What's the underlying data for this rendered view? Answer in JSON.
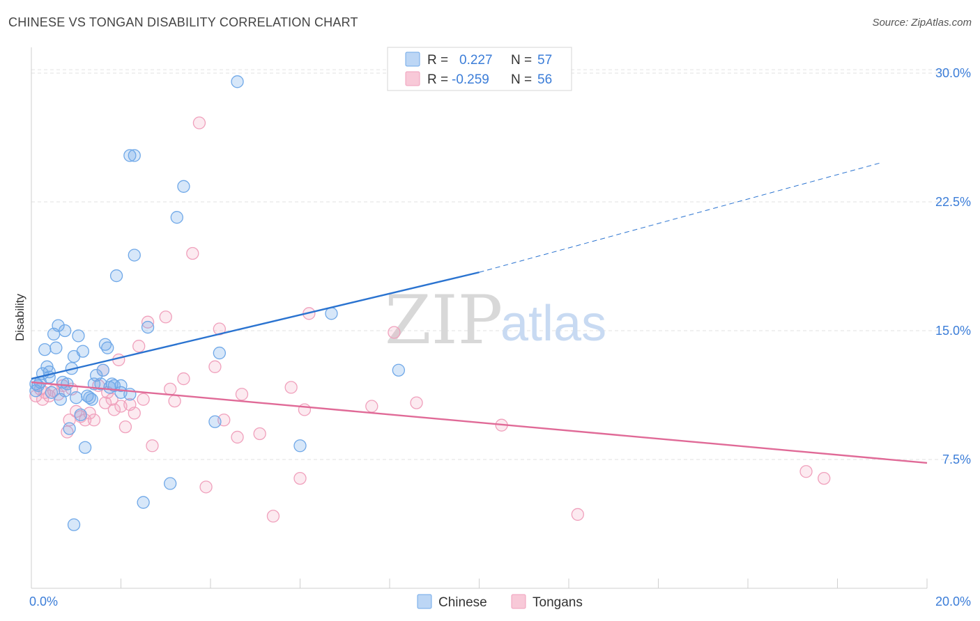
{
  "header": {
    "title": "CHINESE VS TONGAN DISABILITY CORRELATION CHART",
    "source": "Source: ZipAtlas.com"
  },
  "colors": {
    "chinese": "#6fa8e8",
    "chinese_line": "#2a73d0",
    "tongan": "#f0a0bc",
    "tongan_line": "#e06a97",
    "tick_text": "#3b7dd8",
    "grid": "#e2e2e2"
  },
  "chart_data": {
    "type": "scatter",
    "title": "CHINESE VS TONGAN DISABILITY CORRELATION CHART",
    "xlabel": "",
    "ylabel": "Disability",
    "xlim": [
      0,
      20
    ],
    "ylim": [
      0,
      31.5
    ],
    "x_tick_labels": [
      {
        "value": 0,
        "label": "0.0%"
      },
      {
        "value": 20,
        "label": "20.0%"
      }
    ],
    "y_tick_labels": [
      {
        "value": 7.5,
        "label": "7.5%"
      },
      {
        "value": 15,
        "label": "15.0%"
      },
      {
        "value": 22.5,
        "label": "22.5%"
      },
      {
        "value": 30,
        "label": "30.0%"
      }
    ],
    "legend": {
      "placement": "top-center",
      "rows": [
        {
          "r_label": "R =",
          "r_value": "0.227",
          "n_label": "N =",
          "n_value": "57"
        },
        {
          "r_label": "R =",
          "r_value": "-0.259",
          "n_label": "N =",
          "n_value": "56"
        }
      ]
    },
    "series": [
      {
        "name": "Chinese",
        "trend": {
          "x0": 0,
          "y0": 12.2,
          "x1": 10,
          "y1": 18.4,
          "dash_to_x": 19.0,
          "dash_to_y": 24.8
        },
        "points": [
          [
            0.1,
            11.5
          ],
          [
            0.1,
            11.9
          ],
          [
            0.2,
            12.0
          ],
          [
            0.25,
            12.5
          ],
          [
            0.3,
            13.9
          ],
          [
            0.35,
            12.9
          ],
          [
            0.4,
            12.6
          ],
          [
            0.4,
            12.3
          ],
          [
            0.5,
            14.8
          ],
          [
            0.55,
            14.0
          ],
          [
            0.6,
            15.3
          ],
          [
            0.65,
            11.0
          ],
          [
            0.7,
            12.0
          ],
          [
            0.75,
            11.5
          ],
          [
            0.75,
            15.0
          ],
          [
            0.8,
            11.9
          ],
          [
            0.85,
            9.3
          ],
          [
            0.9,
            12.8
          ],
          [
            0.95,
            13.5
          ],
          [
            1.0,
            11.1
          ],
          [
            1.05,
            14.7
          ],
          [
            1.1,
            10.1
          ],
          [
            1.15,
            13.8
          ],
          [
            1.2,
            8.2
          ],
          [
            1.25,
            11.2
          ],
          [
            1.3,
            11.1
          ],
          [
            1.35,
            11.0
          ],
          [
            1.4,
            11.9
          ],
          [
            1.45,
            12.4
          ],
          [
            1.55,
            11.9
          ],
          [
            1.6,
            12.7
          ],
          [
            1.65,
            14.2
          ],
          [
            1.7,
            14.0
          ],
          [
            1.75,
            11.7
          ],
          [
            1.8,
            11.9
          ],
          [
            1.85,
            11.8
          ],
          [
            1.9,
            18.2
          ],
          [
            2.0,
            11.4
          ],
          [
            2.2,
            11.3
          ],
          [
            2.2,
            25.2
          ],
          [
            2.3,
            25.2
          ],
          [
            2.3,
            19.4
          ],
          [
            2.5,
            5.0
          ],
          [
            2.6,
            15.2
          ],
          [
            3.1,
            6.1
          ],
          [
            3.25,
            21.6
          ],
          [
            3.4,
            23.4
          ],
          [
            4.1,
            9.7
          ],
          [
            4.2,
            13.7
          ],
          [
            4.6,
            29.5
          ],
          [
            6.0,
            8.3
          ],
          [
            6.7,
            16.0
          ],
          [
            8.2,
            12.7
          ],
          [
            0.95,
            3.7
          ],
          [
            0.15,
            11.8
          ],
          [
            0.45,
            11.4
          ],
          [
            2.0,
            11.8
          ]
        ]
      },
      {
        "name": "Tongans",
        "trend": {
          "x0": 0,
          "y0": 12.0,
          "x1": 20,
          "y1": 7.3
        },
        "points": [
          [
            0.1,
            11.2
          ],
          [
            0.2,
            11.6
          ],
          [
            0.25,
            11.0
          ],
          [
            0.3,
            11.4
          ],
          [
            0.4,
            11.2
          ],
          [
            0.5,
            11.5
          ],
          [
            0.6,
            11.3
          ],
          [
            0.7,
            11.8
          ],
          [
            0.8,
            9.1
          ],
          [
            0.85,
            9.8
          ],
          [
            0.9,
            11.6
          ],
          [
            1.0,
            10.3
          ],
          [
            1.1,
            10.0
          ],
          [
            1.2,
            9.8
          ],
          [
            1.3,
            10.2
          ],
          [
            1.4,
            9.8
          ],
          [
            1.5,
            11.8
          ],
          [
            1.6,
            12.7
          ],
          [
            1.65,
            10.8
          ],
          [
            1.7,
            11.4
          ],
          [
            1.8,
            11.0
          ],
          [
            1.85,
            10.4
          ],
          [
            1.95,
            13.3
          ],
          [
            2.0,
            10.6
          ],
          [
            2.1,
            9.4
          ],
          [
            2.2,
            10.7
          ],
          [
            2.3,
            10.2
          ],
          [
            2.4,
            14.1
          ],
          [
            2.5,
            11.0
          ],
          [
            2.7,
            8.3
          ],
          [
            2.6,
            15.5
          ],
          [
            3.0,
            15.8
          ],
          [
            3.1,
            11.6
          ],
          [
            3.2,
            10.9
          ],
          [
            3.4,
            12.2
          ],
          [
            3.6,
            19.5
          ],
          [
            3.75,
            27.1
          ],
          [
            3.9,
            5.9
          ],
          [
            4.1,
            12.9
          ],
          [
            4.2,
            15.1
          ],
          [
            4.3,
            9.8
          ],
          [
            4.6,
            8.8
          ],
          [
            4.7,
            11.3
          ],
          [
            5.1,
            9.0
          ],
          [
            5.4,
            4.2
          ],
          [
            5.8,
            11.7
          ],
          [
            6.0,
            6.4
          ],
          [
            6.1,
            10.4
          ],
          [
            6.2,
            16.0
          ],
          [
            7.6,
            10.6
          ],
          [
            8.1,
            14.9
          ],
          [
            8.6,
            10.8
          ],
          [
            10.5,
            9.5
          ],
          [
            12.2,
            4.3
          ],
          [
            17.3,
            6.8
          ],
          [
            17.7,
            6.4
          ]
        ]
      }
    ]
  }
}
